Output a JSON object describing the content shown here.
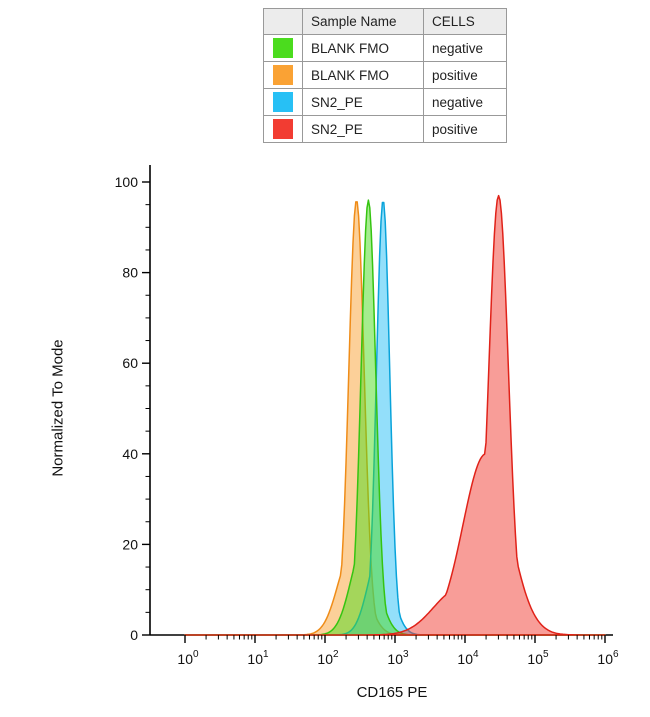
{
  "legend": {
    "headers": {
      "swatch": "",
      "sample": "Sample Name",
      "cells": "CELLS"
    },
    "rows": [
      {
        "color": "#4bdc1e",
        "sample": "BLANK FMO",
        "cells": "negative"
      },
      {
        "color": "#faa234",
        "sample": "BLANK FMO",
        "cells": "positive"
      },
      {
        "color": "#27c0f5",
        "sample": "SN2_PE",
        "cells": "negative"
      },
      {
        "color": "#f23c32",
        "sample": "SN2_PE",
        "cells": "positive"
      }
    ]
  },
  "chart_data": {
    "type": "area",
    "subtype": "flow-cytometry-histogram-overlay",
    "title": "",
    "xlabel": "CD165 PE",
    "ylabel": "Normalized To Mode",
    "x_scale": "log10",
    "x_tick_exponents": [
      0,
      1,
      2,
      3,
      4,
      5,
      6
    ],
    "y_ticks": [
      0,
      20,
      40,
      60,
      80,
      100
    ],
    "xlim_exponents": [
      0,
      6
    ],
    "ylim": [
      0,
      100
    ],
    "grid": false,
    "legend_position": "top-center",
    "series": [
      {
        "name": "BLANK FMO negative",
        "color": "#4bdc1e",
        "stroke": "#35c411",
        "z": 3,
        "peak_mode_x": 420,
        "peak_height": 96,
        "peaks": [
          {
            "mu": 2.62,
            "sigma": 0.105,
            "amp": 96
          },
          {
            "mu": 2.56,
            "sigma": 0.19,
            "amp": 20
          }
        ]
      },
      {
        "name": "BLANK FMO positive",
        "color": "#faa234",
        "stroke": "#ef8c18",
        "z": 1,
        "peak_mode_x": 280,
        "peak_height": 96,
        "peaks": [
          {
            "mu": 2.45,
            "sigma": 0.11,
            "amp": 96
          },
          {
            "mu": 2.38,
            "sigma": 0.2,
            "amp": 18
          }
        ]
      },
      {
        "name": "SN2_PE negative",
        "color": "#27c0f5",
        "stroke": "#09a3da",
        "z": 2,
        "peak_mode_x": 680,
        "peak_height": 96,
        "peaks": [
          {
            "mu": 2.83,
            "sigma": 0.095,
            "amp": 96
          },
          {
            "mu": 2.78,
            "sigma": 0.17,
            "amp": 18
          }
        ]
      },
      {
        "name": "SN2_PE positive",
        "color": "#f23c32",
        "stroke": "#e02219",
        "z": 4,
        "peak_mode_x": 30000,
        "peak_height": 97,
        "peaks": [
          {
            "mu": 4.48,
            "sigma": 0.14,
            "amp": 97
          },
          {
            "mu": 4.3,
            "sigma": 0.33,
            "amp": 40
          },
          {
            "mu": 3.9,
            "sigma": 0.35,
            "amp": 10
          }
        ]
      }
    ]
  }
}
